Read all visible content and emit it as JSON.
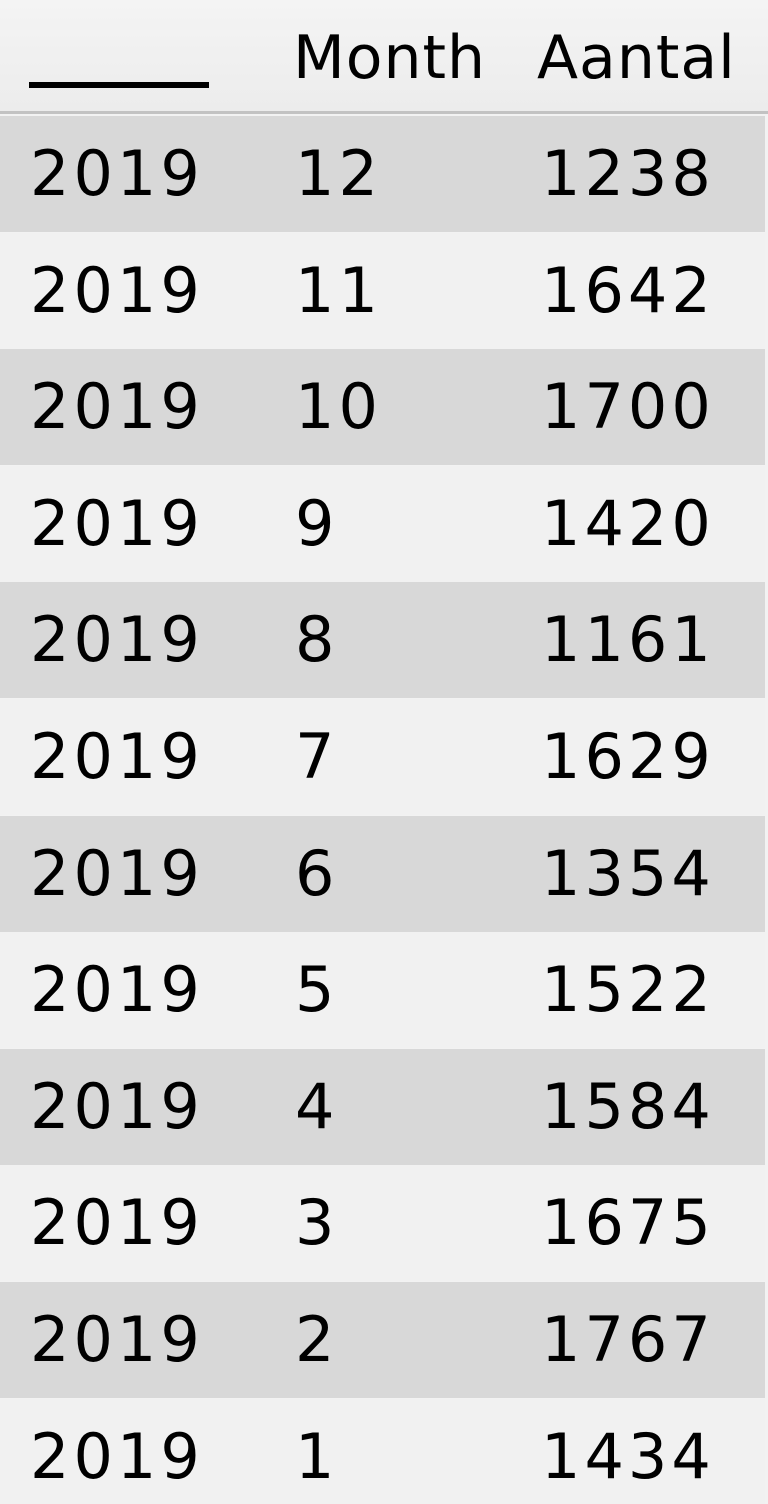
{
  "chart_data": {
    "type": "table",
    "columns": [
      "",
      "Month",
      "Aantal"
    ],
    "rows": [
      [
        "2019",
        "12",
        "1238"
      ],
      [
        "2019",
        "11",
        "1642"
      ],
      [
        "2019",
        "10",
        "1700"
      ],
      [
        "2019",
        "9",
        "1420"
      ],
      [
        "2019",
        "8",
        "1161"
      ],
      [
        "2019",
        "7",
        "1629"
      ],
      [
        "2019",
        "6",
        "1354"
      ],
      [
        "2019",
        "5",
        "1522"
      ],
      [
        "2019",
        "4",
        "1584"
      ],
      [
        "2019",
        "3",
        "1675"
      ],
      [
        "2019",
        "2",
        "1767"
      ],
      [
        "2019",
        "1",
        "1434"
      ]
    ]
  }
}
